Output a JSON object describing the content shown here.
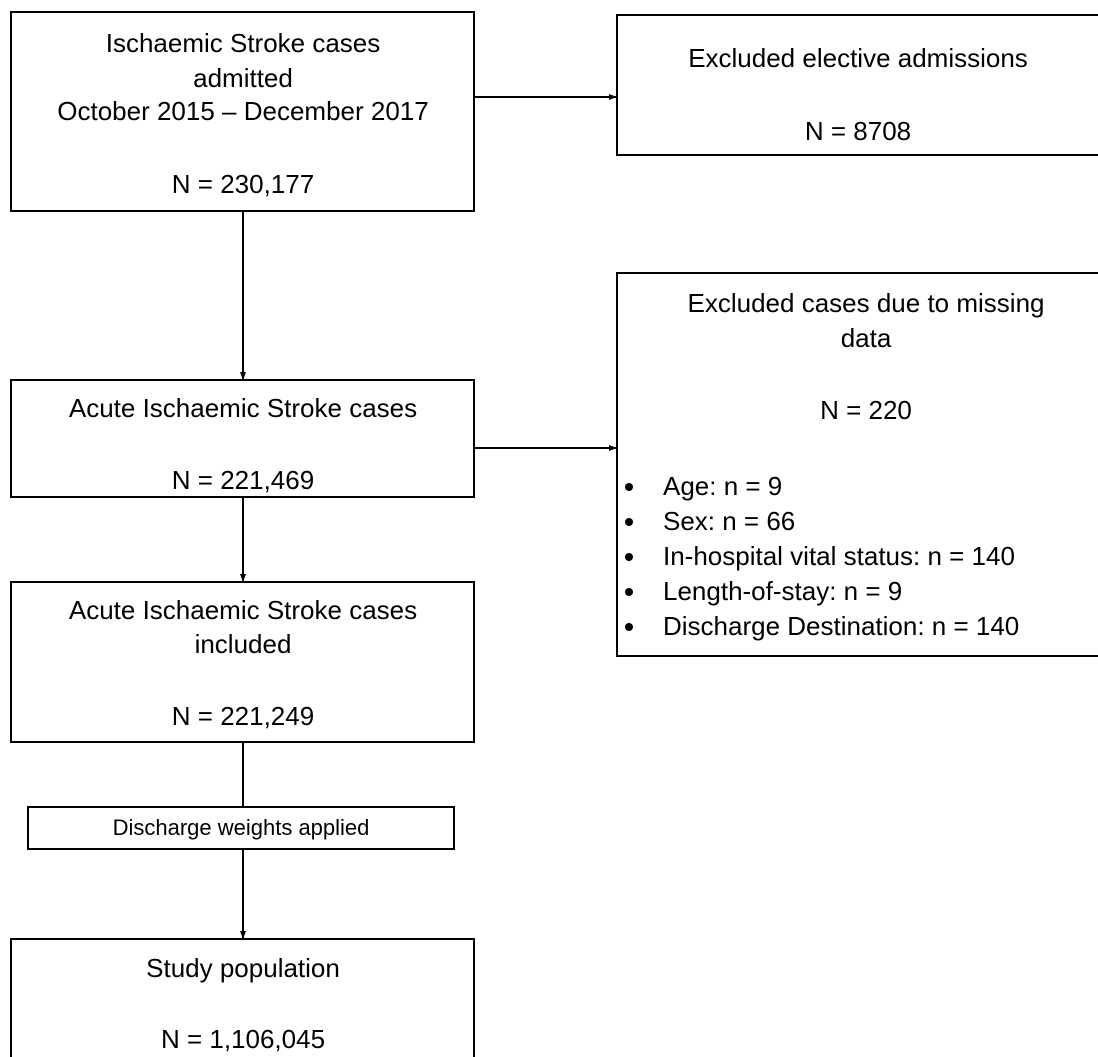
{
  "nodes": [
    {
      "lines": [
        "Ischaemic Stroke cases",
        "admitted",
        "October 2015 – December 2017",
        "N = 230,177"
      ]
    },
    {
      "lines": [
        "Excluded elective admissions",
        "N = 8708"
      ]
    },
    {
      "lines": [
        "Acute Ischaemic Stroke cases",
        "N = 221,469"
      ]
    },
    {
      "lines": [
        "Excluded cases due to missing",
        "data",
        "N = 220"
      ],
      "bullets": [
        "Age: n = 9",
        "Sex: n = 66",
        "In-hospital vital status: n = 140",
        "Length-of-stay: n = 9",
        "Discharge Destination: n = 140"
      ]
    },
    {
      "lines": [
        "Acute Ischaemic Stroke cases",
        "included",
        "N = 221,249"
      ]
    },
    {
      "lines": [
        "Discharge weights applied"
      ]
    },
    {
      "lines": [
        "Study population",
        "N = 1,106,045"
      ]
    }
  ]
}
